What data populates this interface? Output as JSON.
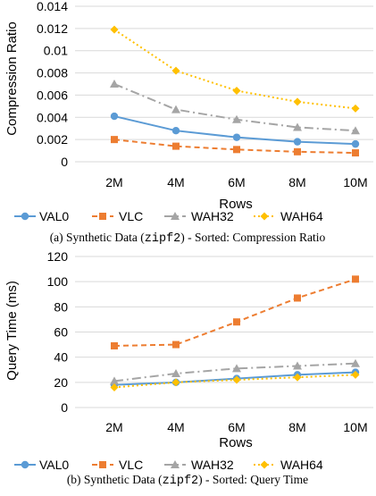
{
  "chart_data": [
    {
      "type": "line",
      "title": "",
      "xlabel": "Rows",
      "ylabel": "Compression Ratio",
      "categories": [
        "2M",
        "4M",
        "6M",
        "8M",
        "10M"
      ],
      "ylim": [
        0,
        0.014
      ],
      "yticks": [
        0,
        0.002,
        0.004,
        0.006,
        0.008,
        0.01,
        0.012,
        0.014
      ],
      "ytick_labels": [
        "0",
        "0.002",
        "0.004",
        "0.006",
        "0.008",
        "0.01",
        "0.012",
        "0.014"
      ],
      "grid": true,
      "legend_position": "bottom",
      "series": [
        {
          "name": "VAL0",
          "values": [
            0.0041,
            0.0028,
            0.0022,
            0.0018,
            0.0016
          ]
        },
        {
          "name": "VLC",
          "values": [
            0.002,
            0.0014,
            0.0011,
            0.0009,
            0.0008
          ]
        },
        {
          "name": "WAH32",
          "values": [
            0.007,
            0.0047,
            0.0038,
            0.0031,
            0.0028
          ]
        },
        {
          "name": "WAH64",
          "values": [
            0.0119,
            0.0082,
            0.0064,
            0.0054,
            0.0048
          ]
        }
      ],
      "caption": {
        "prefix": "(a) Synthetic Data (",
        "code": "zipf2",
        "suffix": ") - Sorted: Compression Ratio"
      }
    },
    {
      "type": "line",
      "title": "",
      "xlabel": "Rows",
      "ylabel": "Query Time (ms)",
      "categories": [
        "2M",
        "4M",
        "6M",
        "8M",
        "10M"
      ],
      "ylim": [
        0,
        120
      ],
      "yticks": [
        0,
        20,
        40,
        60,
        80,
        100,
        120
      ],
      "ytick_labels": [
        "0",
        "20",
        "40",
        "60",
        "80",
        "100",
        "120"
      ],
      "grid": true,
      "legend_position": "bottom",
      "series": [
        {
          "name": "VAL0",
          "values": [
            18,
            20,
            23,
            26,
            28
          ]
        },
        {
          "name": "VLC",
          "values": [
            49,
            50,
            68,
            87,
            102
          ]
        },
        {
          "name": "WAH32",
          "values": [
            21,
            27,
            31,
            33,
            35
          ]
        },
        {
          "name": "WAH64",
          "values": [
            16,
            20,
            22,
            24,
            26
          ]
        }
      ],
      "caption": {
        "prefix": "(b) Synthetic Data (",
        "code": "zipf2",
        "suffix": ") - Sorted: Query Time"
      }
    }
  ],
  "series_style": {
    "VAL0": {
      "color": "#5b9bd5",
      "dash": "",
      "marker": "circle"
    },
    "VLC": {
      "color": "#ed7d31",
      "dash": "6,4",
      "marker": "square"
    },
    "WAH32": {
      "color": "#a5a5a5",
      "dash": "10,4,2,4",
      "marker": "triangle"
    },
    "WAH64": {
      "color": "#ffc000",
      "dash": "2,3",
      "marker": "diamond"
    }
  },
  "colors": {
    "grid": "#d9d9d9",
    "text": "#000000"
  }
}
